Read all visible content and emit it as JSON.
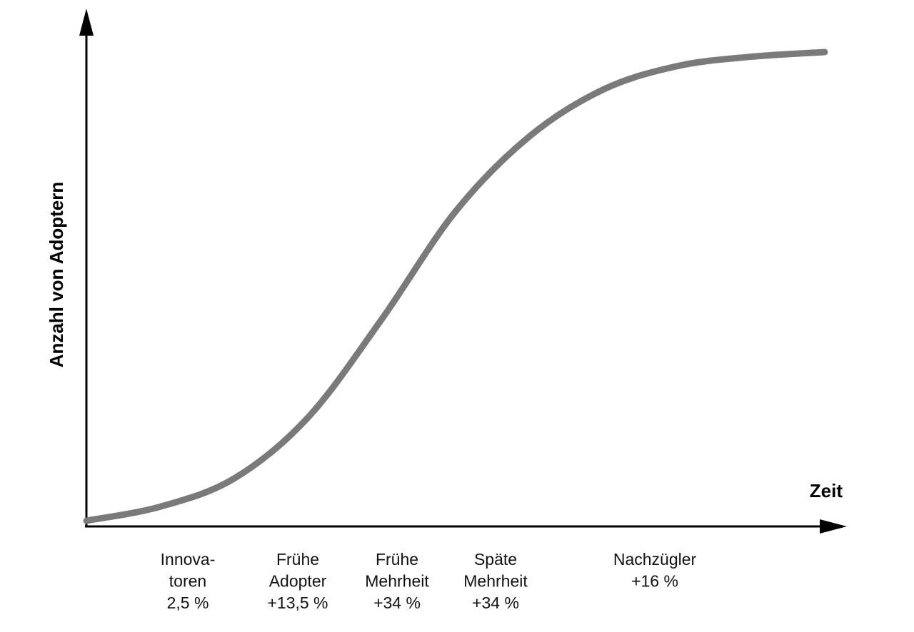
{
  "chart_data": {
    "type": "line",
    "title": "",
    "xlabel": "Zeit",
    "ylabel": "Anzahl von Adoptern",
    "grid": false,
    "line_color": "#7a7a7a",
    "axis_color": "#000000",
    "categories": [
      {
        "lines": [
          "Innova-",
          "toren",
          "2,5 %"
        ],
        "share": 2.5
      },
      {
        "lines": [
          "Frühe",
          "Adopter",
          "+13,5 %"
        ],
        "share": 13.5
      },
      {
        "lines": [
          "Frühe",
          "Mehrheit",
          "+34 %"
        ],
        "share": 34
      },
      {
        "lines": [
          "Späte",
          "Mehrheit",
          "+34 %"
        ],
        "share": 34
      },
      {
        "lines": [
          "Nachzügler",
          "+16 %"
        ],
        "share": 16
      }
    ],
    "series": [
      {
        "x": [
          0,
          0.1,
          0.2,
          0.3,
          0.4,
          0.5,
          0.6,
          0.7,
          0.8,
          0.9,
          1.0
        ],
        "values": [
          0.0,
          0.03,
          0.09,
          0.22,
          0.43,
          0.66,
          0.82,
          0.92,
          0.97,
          0.99,
          1.0
        ]
      }
    ]
  }
}
